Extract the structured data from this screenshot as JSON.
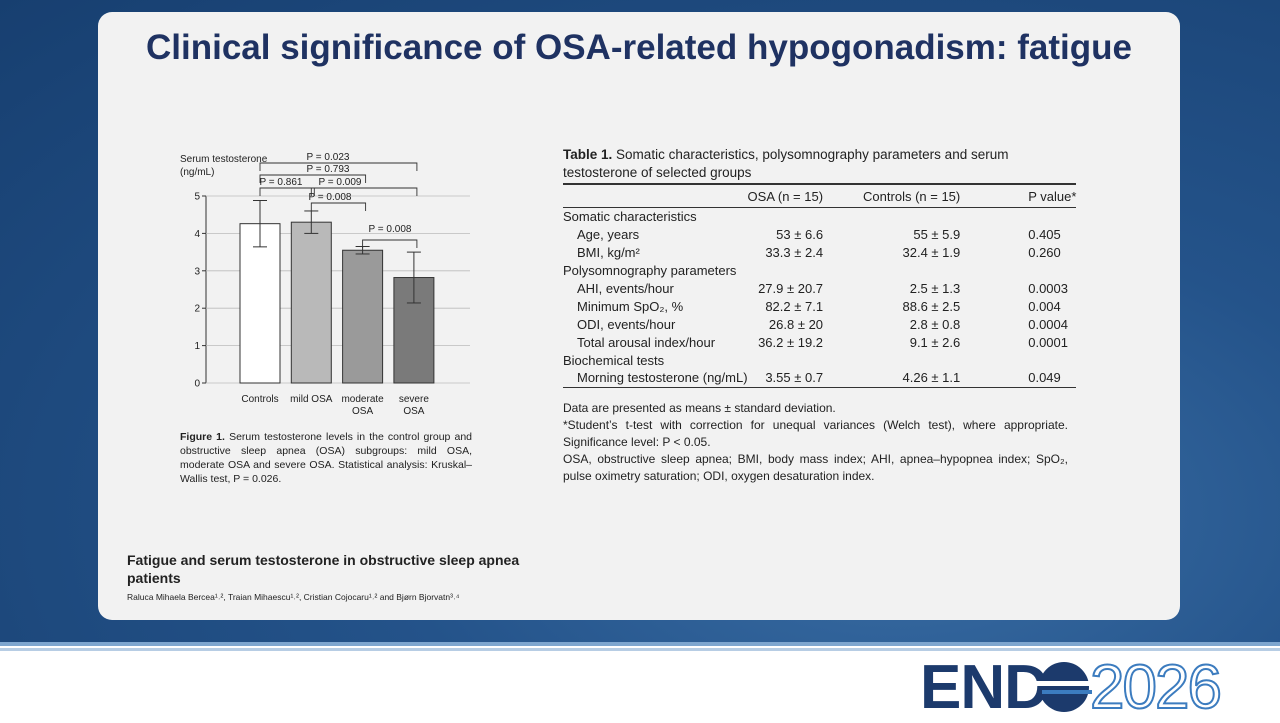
{
  "title": "Clinical significance of OSA-related hypogonadism: fatigue",
  "chart_data": {
    "type": "bar",
    "y_label": [
      "Serum testosterone",
      "(ng/mL)"
    ],
    "categories": [
      "Controls",
      "mild OSA",
      "moderate OSA",
      "severe OSA"
    ],
    "values": [
      4.26,
      4.3,
      3.55,
      2.82
    ],
    "errors": [
      0.62,
      0.3,
      0.1,
      0.68
    ],
    "colors": [
      "#ffffff",
      "#b9b9b9",
      "#9a9a9a",
      "#7a7a7a"
    ],
    "ylim": [
      0,
      5
    ],
    "yticks": [
      0,
      1,
      2,
      3,
      4,
      5
    ],
    "grid": true,
    "annotations": [
      "P = 0.023",
      "P = 0.793",
      "P = 0.861",
      "P = 0.009",
      "P = 0.008",
      "P = 0.008"
    ]
  },
  "figure_caption": {
    "label": "Figure 1.",
    "text": "Serum testosterone levels in the control group and obstructive sleep apnea (OSA) subgroups: mild OSA, moderate OSA and severe OSA. Statistical analysis: Kruskal–Wallis test, P = 0.026."
  },
  "table": {
    "label": "Table 1.",
    "caption": "Somatic characteristics, polysomnography parameters and serum testosterone of selected groups",
    "columns": [
      "OSA (n = 15)",
      "Controls (n = 15)",
      "P value*"
    ],
    "sections": [
      {
        "heading": "Somatic characteristics",
        "rows": [
          [
            "Age, years",
            "53 ± 6.6",
            "55 ± 5.9",
            "0.405"
          ],
          [
            "BMI, kg/m²",
            "33.3 ± 2.4",
            "32.4 ± 1.9",
            "0.260"
          ]
        ]
      },
      {
        "heading": "Polysomnography parameters",
        "rows": [
          [
            "AHI, events/hour",
            "27.9 ± 20.7",
            "2.5 ± 1.3",
            "0.0003"
          ],
          [
            "Minimum SpO₂, %",
            "82.2 ± 7.1",
            "88.6 ± 2.5",
            "0.004"
          ],
          [
            "ODI, events/hour",
            "26.8 ± 20",
            "2.8 ± 0.8",
            "0.0004"
          ],
          [
            "Total arousal index/hour",
            "36.2 ± 19.2",
            "9.1 ± 2.6",
            "0.0001"
          ]
        ]
      },
      {
        "heading": "Biochemical tests",
        "rows": [
          [
            "Morning testosterone (ng/mL)",
            "3.55 ± 0.7",
            "4.26 ± 1.1",
            "0.049"
          ]
        ]
      }
    ],
    "notes": [
      "Data are presented as means ± standard deviation.",
      "*Student’s t-test with correction for unequal variances (Welch test), where appropriate. Significance level: P < 0.05.",
      "OSA, obstructive sleep apnea; BMI, body mass index; AHI, apnea–hypopnea index; SpO₂, pulse oximetry saturation; ODI, oxygen desaturation index."
    ]
  },
  "paper": {
    "title": "Fatigue and serum testosterone in obstructive sleep apnea patients",
    "authors": "Raluca Mihaela Bercea¹˒², Traian Mihaescu¹˒², Cristian Cojocaru¹˒² and Bjørn Bjorvatn³˒⁴"
  },
  "logo": {
    "left": "END",
    "right": "2026"
  }
}
